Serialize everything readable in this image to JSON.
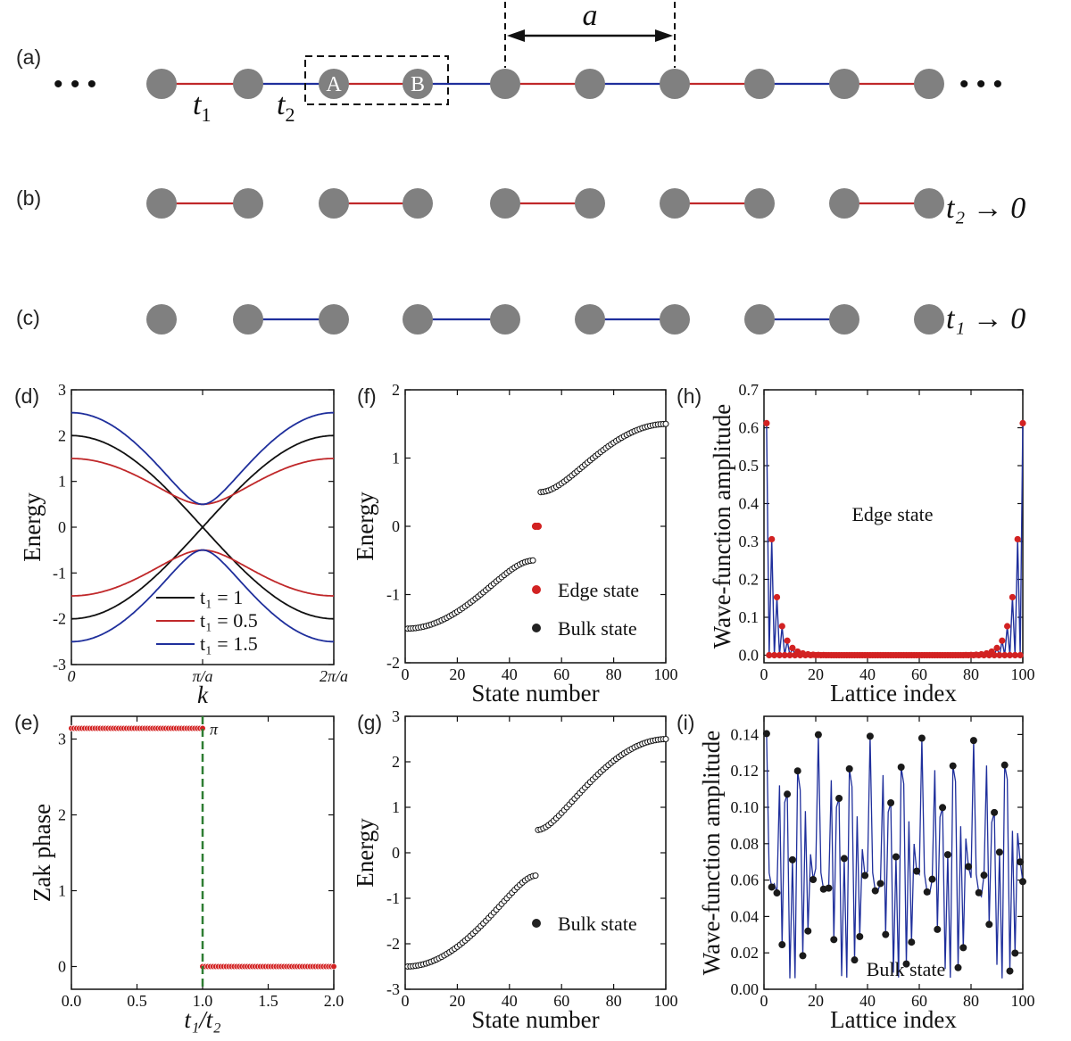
{
  "colors": {
    "red": "#c0282a",
    "blue": "#1f2f9c",
    "black": "#111111",
    "site": "#808080",
    "green": "#2e7d32",
    "edge": "#d22222"
  },
  "lattice": {
    "label_a": "(a)",
    "label_b": "(b)",
    "label_c": "(c)",
    "dots": "• • •",
    "a_label": "a",
    "t1": "t",
    "t1_sub": "1",
    "t2": "t",
    "t2_sub": "2",
    "site_A": "A",
    "site_B": "B",
    "limit_b": "t₂ → 0",
    "limit_c": "t₁ → 0"
  },
  "chart_data": [
    {
      "id": "d",
      "panel": "(d)",
      "type": "line",
      "title": "",
      "xlabel": "k",
      "ylabel": "Energy",
      "xlim": [
        0,
        6.2832
      ],
      "ylim": [
        -3,
        3
      ],
      "xticks": [
        "0",
        "π/a",
        "2π/a"
      ],
      "yticks": [
        "-3",
        "-2",
        "-1",
        "0",
        "1",
        "2",
        "3"
      ],
      "series": [
        {
          "name": "t₁ = 1",
          "t1": 1.0,
          "t2": 1.0,
          "color": "#111111"
        },
        {
          "name": "t₁ = 0.5",
          "t1": 0.5,
          "t2": 1.0,
          "color": "#c0282a"
        },
        {
          "name": "t₁ = 1.5",
          "t1": 1.5,
          "t2": 1.0,
          "color": "#1f2f9c"
        }
      ],
      "legend": "bottom-center"
    },
    {
      "id": "e",
      "panel": "(e)",
      "type": "scatter",
      "title": "",
      "xlabel": "t₁/t₂",
      "ylabel": "Zak phase",
      "xlim": [
        0,
        2
      ],
      "ylim": [
        -0.3,
        3.3
      ],
      "xticks": [
        "0.0",
        "0.5",
        "1.0",
        "1.5",
        "2.0"
      ],
      "yticks": [
        "0",
        "1",
        "2",
        "3"
      ],
      "segments": [
        {
          "x_from": 0,
          "x_to": 1.0,
          "value": 3.1416
        },
        {
          "x_from": 1.0,
          "x_to": 2.0,
          "value": 0
        }
      ],
      "annotation": "π",
      "transition_x": 1.0
    },
    {
      "id": "f",
      "panel": "(f)",
      "type": "scatter",
      "title": "",
      "xlabel": "State number",
      "ylabel": "Energy",
      "xlim": [
        0,
        100
      ],
      "ylim": [
        -2,
        2
      ],
      "xticks": [
        "0",
        "20",
        "40",
        "60",
        "80",
        "100"
      ],
      "yticks": [
        "-2",
        "-1",
        "0",
        "1",
        "2"
      ],
      "t1": 0.5,
      "t2": 1.0,
      "n_states": 100,
      "edge_states": [
        49,
        50
      ],
      "legend": [
        "Edge state",
        "Bulk state"
      ]
    },
    {
      "id": "g",
      "panel": "(g)",
      "type": "scatter",
      "title": "",
      "xlabel": "State number",
      "ylabel": "Energy",
      "xlim": [
        0,
        100
      ],
      "ylim": [
        -3,
        3
      ],
      "xticks": [
        "0",
        "20",
        "40",
        "60",
        "80",
        "100"
      ],
      "yticks": [
        "-3",
        "-2",
        "-1",
        "0",
        "1",
        "2",
        "3"
      ],
      "t1": 1.5,
      "t2": 1.0,
      "n_states": 100,
      "legend": [
        "Bulk state"
      ]
    },
    {
      "id": "h",
      "panel": "(h)",
      "type": "line",
      "title": "",
      "xlabel": "Lattice index",
      "ylabel": "Wave-function amplitude",
      "xlim": [
        0,
        100
      ],
      "ylim": [
        -0.02,
        0.7
      ],
      "xticks": [
        "0",
        "20",
        "40",
        "60",
        "80",
        "100"
      ],
      "yticks": [
        "0.0",
        "0.1",
        "0.2",
        "0.3",
        "0.4",
        "0.5",
        "0.6",
        "0.7"
      ],
      "amplitude": 0.612,
      "decay_ratio": 0.5,
      "annotation": "Edge state"
    },
    {
      "id": "i",
      "panel": "(i)",
      "type": "line",
      "title": "",
      "xlabel": "Lattice index",
      "ylabel": "Wave-function amplitude",
      "xlim": [
        0,
        100
      ],
      "ylim": [
        0,
        0.15
      ],
      "xticks": [
        "0",
        "20",
        "40",
        "60",
        "80",
        "100"
      ],
      "yticks": [
        "0.00",
        "0.02",
        "0.04",
        "0.06",
        "0.08",
        "0.10",
        "0.12",
        "0.14"
      ],
      "max_amplitude": 0.141,
      "annotation": "Bulk state"
    }
  ]
}
